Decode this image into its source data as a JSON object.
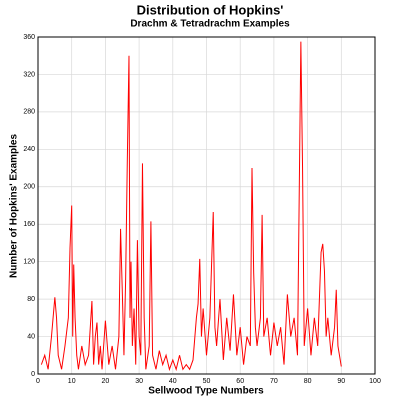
{
  "chart_data": {
    "type": "line",
    "title": "Distribution of Hopkins'",
    "subtitle": "Drachm & Tetradrachm Examples",
    "x_label": "Sellwood Type Numbers",
    "y_label": "Number of Hopkins' Examples",
    "x": [
      1,
      2,
      3,
      4,
      5,
      5.5,
      6,
      7,
      8,
      9,
      9.5,
      10,
      10.3,
      10.6,
      11,
      11.5,
      12,
      13,
      14,
      15,
      16,
      16.5,
      17,
      17.5,
      18,
      18.5,
      19,
      20,
      21,
      22,
      23,
      24,
      24.5,
      25,
      25.5,
      26,
      26.5,
      27,
      27.3,
      27.6,
      28,
      28.5,
      29,
      29.5,
      30,
      30.5,
      31,
      31.5,
      32,
      33,
      33.5,
      34,
      35,
      36,
      37,
      38,
      39,
      40,
      41,
      42,
      43,
      44,
      45,
      46,
      47,
      47.5,
      48,
      48.5,
      49,
      50,
      51,
      52,
      52.5,
      53,
      54,
      55,
      56,
      57,
      58,
      59,
      60,
      61,
      62,
      63,
      63.5,
      64,
      64.5,
      65,
      66,
      66.5,
      67,
      68,
      69,
      70,
      71,
      72,
      73,
      74,
      75,
      76,
      77,
      78,
      78.5,
      79,
      80,
      81,
      82,
      83,
      84,
      84.5,
      85,
      85.5,
      86,
      87,
      88,
      88.5,
      89,
      90
    ],
    "series": [
      {
        "name": "Hopkins' Examples",
        "color": "#ff0000",
        "values": [
          10,
          20,
          5,
          40,
          82,
          60,
          20,
          5,
          30,
          60,
          135,
          180,
          40,
          117,
          60,
          20,
          5,
          30,
          10,
          20,
          78,
          10,
          40,
          55,
          10,
          30,
          5,
          57,
          10,
          30,
          5,
          40,
          155,
          90,
          20,
          100,
          228,
          340,
          60,
          120,
          30,
          70,
          10,
          143,
          40,
          20,
          225,
          60,
          5,
          30,
          163,
          20,
          5,
          25,
          10,
          20,
          5,
          15,
          5,
          20,
          5,
          10,
          5,
          15,
          60,
          75,
          123,
          40,
          70,
          20,
          60,
          173,
          50,
          30,
          80,
          15,
          60,
          25,
          85,
          20,
          50,
          10,
          40,
          30,
          220,
          108,
          50,
          30,
          60,
          170,
          40,
          60,
          20,
          55,
          30,
          50,
          10,
          85,
          40,
          60,
          20,
          355,
          220,
          30,
          70,
          20,
          60,
          30,
          130,
          139,
          110,
          40,
          60,
          20,
          50,
          90,
          30,
          8
        ]
      }
    ],
    "xlim": [
      0,
      100
    ],
    "xticks": [
      0,
      10,
      20,
      30,
      40,
      50,
      60,
      70,
      80,
      90,
      100
    ],
    "ylim": [
      0,
      360
    ],
    "yticks": [
      0,
      40,
      80,
      120,
      160,
      200,
      240,
      280,
      320,
      360
    ],
    "grid": true
  }
}
